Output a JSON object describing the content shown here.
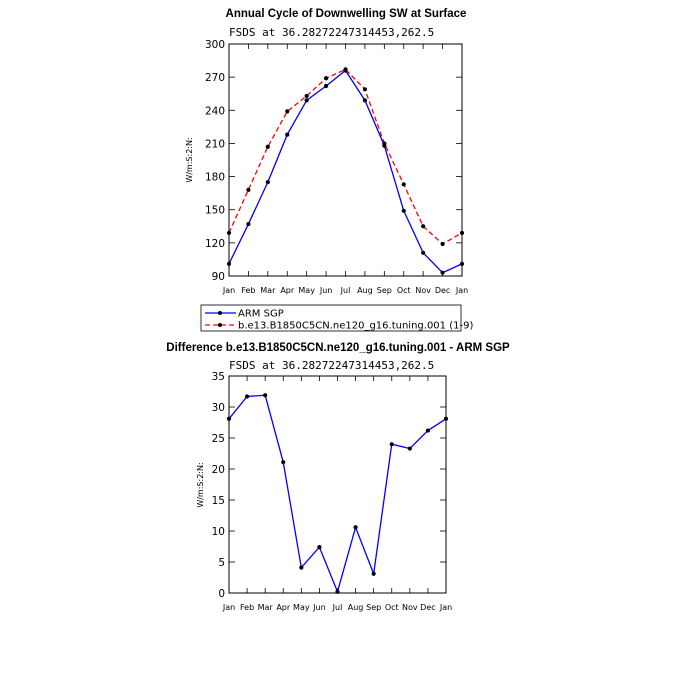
{
  "chart_data": [
    {
      "type": "line",
      "title": "Annual Cycle of Downwelling SW at Surface",
      "subtitle": "FSDS at 36.28272247314453,262.5",
      "ylabel": "W/m:S:2:N:",
      "ylim": [
        90,
        300
      ],
      "yticks": [
        90,
        120,
        150,
        180,
        210,
        240,
        270,
        300
      ],
      "categories": [
        "Jan",
        "Feb",
        "Mar",
        "Apr",
        "May",
        "Jun",
        "Jul",
        "Aug",
        "Sep",
        "Oct",
        "Nov",
        "Dec",
        "Jan"
      ],
      "series": [
        {
          "name": "ARM SGP",
          "color": "#0000ff",
          "style": "solid",
          "values": [
            101,
            137,
            175,
            218,
            249,
            262,
            276,
            249,
            208,
            149,
            111,
            93,
            101
          ]
        },
        {
          "name": "b.e13.B1850C5CN.ne120_g16.tuning.001 (1-9)",
          "color": "#ff0000",
          "style": "dashed",
          "values": [
            129,
            168,
            207,
            239,
            253,
            269,
            277,
            259,
            210,
            173,
            135,
            119,
            129
          ]
        }
      ],
      "legend_placement": "below"
    },
    {
      "type": "line",
      "title": "Difference b.e13.B1850C5CN.ne120_g16.tuning.001 - ARM SGP",
      "subtitle": "FSDS at 36.28272247314453,262.5",
      "ylabel": "W/m:S:2:N:",
      "ylim": [
        0,
        35
      ],
      "yticks": [
        0,
        5,
        10,
        15,
        20,
        25,
        30,
        35
      ],
      "categories": [
        "Jan",
        "Feb",
        "Mar",
        "Apr",
        "May",
        "Jun",
        "Jul",
        "Aug",
        "Sep",
        "Oct",
        "Nov",
        "Dec",
        "Jan"
      ],
      "series": [
        {
          "color": "#0000ff",
          "style": "solid",
          "values": [
            28.1,
            31.7,
            31.9,
            21.1,
            4.1,
            7.4,
            0.2,
            10.6,
            3.1,
            24.0,
            23.3,
            26.2,
            28.1
          ]
        }
      ]
    }
  ]
}
